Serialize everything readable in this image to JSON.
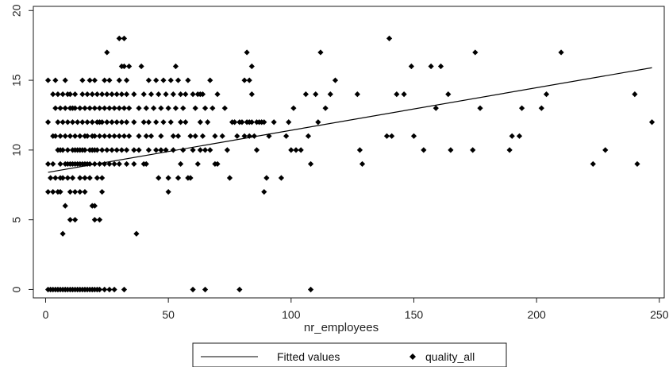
{
  "chart_data": {
    "type": "scatter",
    "xlabel": "nr_employees",
    "ylabel": "",
    "xlim": [
      -5,
      252
    ],
    "ylim": [
      -0.6,
      20.3
    ],
    "xticks": [
      0,
      50,
      100,
      150,
      200,
      250
    ],
    "yticks": [
      0,
      5,
      10,
      15,
      20
    ],
    "grid": false,
    "legend_position": "bottom",
    "series": [
      {
        "name": "Fitted values",
        "type": "line",
        "color": "#000000",
        "x": [
          1,
          247
        ],
        "y": [
          8.4,
          15.9
        ]
      },
      {
        "name": "quality_all",
        "type": "scatter",
        "marker": "diamond",
        "color": "#000000",
        "points": [
          [
            1,
            15
          ],
          [
            1,
            12
          ],
          [
            1,
            9
          ],
          [
            1,
            7
          ],
          [
            1,
            0
          ],
          [
            2,
            8
          ],
          [
            2,
            0
          ],
          [
            3,
            14
          ],
          [
            3,
            11
          ],
          [
            3,
            9
          ],
          [
            3,
            7
          ],
          [
            3,
            0
          ],
          [
            4,
            15
          ],
          [
            4,
            13
          ],
          [
            4,
            11
          ],
          [
            4,
            8
          ],
          [
            4,
            0
          ],
          [
            5,
            14
          ],
          [
            5,
            12
          ],
          [
            5,
            10
          ],
          [
            5,
            7
          ],
          [
            5,
            0
          ],
          [
            6,
            13
          ],
          [
            6,
            11
          ],
          [
            6,
            10
          ],
          [
            6,
            9
          ],
          [
            6,
            8
          ],
          [
            6,
            7
          ],
          [
            6,
            0
          ],
          [
            7,
            14
          ],
          [
            7,
            12
          ],
          [
            7,
            10
          ],
          [
            7,
            8
          ],
          [
            7,
            4
          ],
          [
            7,
            0
          ],
          [
            8,
            15
          ],
          [
            8,
            13
          ],
          [
            8,
            11
          ],
          [
            8,
            9
          ],
          [
            8,
            6
          ],
          [
            8,
            0
          ],
          [
            9,
            14
          ],
          [
            9,
            12
          ],
          [
            9,
            10
          ],
          [
            9,
            9
          ],
          [
            9,
            8
          ],
          [
            9,
            0
          ],
          [
            10,
            14
          ],
          [
            10,
            13
          ],
          [
            10,
            11
          ],
          [
            10,
            9
          ],
          [
            10,
            7
          ],
          [
            10,
            5
          ],
          [
            10,
            0
          ],
          [
            11,
            13
          ],
          [
            11,
            12
          ],
          [
            11,
            10
          ],
          [
            11,
            9
          ],
          [
            11,
            8
          ],
          [
            11,
            0
          ],
          [
            12,
            14
          ],
          [
            12,
            13
          ],
          [
            12,
            11
          ],
          [
            12,
            10
          ],
          [
            12,
            9
          ],
          [
            12,
            7
          ],
          [
            12,
            5
          ],
          [
            12,
            0
          ],
          [
            13,
            12
          ],
          [
            13,
            10
          ],
          [
            13,
            9
          ],
          [
            13,
            0
          ],
          [
            14,
            13
          ],
          [
            14,
            11
          ],
          [
            14,
            10
          ],
          [
            14,
            9
          ],
          [
            14,
            8
          ],
          [
            14,
            7
          ],
          [
            14,
            0
          ],
          [
            15,
            15
          ],
          [
            15,
            14
          ],
          [
            15,
            12
          ],
          [
            15,
            10
          ],
          [
            15,
            9
          ],
          [
            15,
            0
          ],
          [
            16,
            13
          ],
          [
            16,
            11
          ],
          [
            16,
            10
          ],
          [
            16,
            9
          ],
          [
            16,
            8
          ],
          [
            16,
            7
          ],
          [
            16,
            0
          ],
          [
            17,
            14
          ],
          [
            17,
            12
          ],
          [
            17,
            11
          ],
          [
            17,
            9
          ],
          [
            17,
            0
          ],
          [
            18,
            15
          ],
          [
            18,
            13
          ],
          [
            18,
            10
          ],
          [
            18,
            9
          ],
          [
            18,
            8
          ],
          [
            18,
            0
          ],
          [
            19,
            14
          ],
          [
            19,
            12
          ],
          [
            19,
            11
          ],
          [
            19,
            10
          ],
          [
            19,
            6
          ],
          [
            19,
            0
          ],
          [
            20,
            15
          ],
          [
            20,
            13
          ],
          [
            20,
            11
          ],
          [
            20,
            10
          ],
          [
            20,
            9
          ],
          [
            20,
            6
          ],
          [
            20,
            5
          ],
          [
            20,
            0
          ],
          [
            21,
            14
          ],
          [
            21,
            12
          ],
          [
            21,
            10
          ],
          [
            21,
            8
          ],
          [
            21,
            0
          ],
          [
            22,
            13
          ],
          [
            22,
            12
          ],
          [
            22,
            11
          ],
          [
            22,
            9
          ],
          [
            22,
            5
          ],
          [
            22,
            0
          ],
          [
            23,
            14
          ],
          [
            23,
            12
          ],
          [
            23,
            10
          ],
          [
            23,
            8
          ],
          [
            23,
            7
          ],
          [
            24,
            15
          ],
          [
            24,
            13
          ],
          [
            24,
            11
          ],
          [
            24,
            9
          ],
          [
            24,
            0
          ],
          [
            25,
            17
          ],
          [
            25,
            14
          ],
          [
            25,
            12
          ],
          [
            25,
            10
          ],
          [
            26,
            15
          ],
          [
            26,
            13
          ],
          [
            26,
            11
          ],
          [
            26,
            9
          ],
          [
            26,
            0
          ],
          [
            27,
            14
          ],
          [
            27,
            12
          ],
          [
            27,
            10
          ],
          [
            28,
            13
          ],
          [
            28,
            11
          ],
          [
            28,
            9
          ],
          [
            28,
            0
          ],
          [
            29,
            14
          ],
          [
            29,
            12
          ],
          [
            29,
            10
          ],
          [
            30,
            18
          ],
          [
            30,
            15
          ],
          [
            30,
            13
          ],
          [
            30,
            11
          ],
          [
            30,
            9
          ],
          [
            31,
            16
          ],
          [
            31,
            14
          ],
          [
            31,
            12
          ],
          [
            31,
            10
          ],
          [
            32,
            18
          ],
          [
            32,
            16
          ],
          [
            32,
            13
          ],
          [
            32,
            11
          ],
          [
            32,
            0
          ],
          [
            33,
            15
          ],
          [
            33,
            14
          ],
          [
            33,
            12
          ],
          [
            33,
            10
          ],
          [
            33,
            9
          ],
          [
            34,
            16
          ],
          [
            34,
            13
          ],
          [
            34,
            11
          ],
          [
            36,
            14
          ],
          [
            36,
            12
          ],
          [
            36,
            10
          ],
          [
            36,
            9
          ],
          [
            37,
            4
          ],
          [
            38,
            13
          ],
          [
            38,
            11
          ],
          [
            38,
            10
          ],
          [
            39,
            16
          ],
          [
            40,
            14
          ],
          [
            40,
            12
          ],
          [
            40,
            9
          ],
          [
            41,
            13
          ],
          [
            41,
            11
          ],
          [
            41,
            9
          ],
          [
            42,
            15
          ],
          [
            42,
            12
          ],
          [
            42,
            10
          ],
          [
            43,
            14
          ],
          [
            43,
            11
          ],
          [
            44,
            13
          ],
          [
            45,
            15
          ],
          [
            45,
            12
          ],
          [
            45,
            10
          ],
          [
            46,
            14
          ],
          [
            46,
            8
          ],
          [
            47,
            13
          ],
          [
            47,
            11
          ],
          [
            47,
            10
          ],
          [
            48,
            15
          ],
          [
            48,
            12
          ],
          [
            49,
            14
          ],
          [
            49,
            10
          ],
          [
            50,
            13
          ],
          [
            50,
            8
          ],
          [
            50,
            7
          ],
          [
            51,
            15
          ],
          [
            51,
            12
          ],
          [
            52,
            14
          ],
          [
            52,
            11
          ],
          [
            52,
            10
          ],
          [
            53,
            16
          ],
          [
            53,
            13
          ],
          [
            54,
            15
          ],
          [
            54,
            11
          ],
          [
            54,
            8
          ],
          [
            55,
            14
          ],
          [
            55,
            12
          ],
          [
            55,
            9
          ],
          [
            56,
            13
          ],
          [
            56,
            10
          ],
          [
            57,
            14
          ],
          [
            57,
            12
          ],
          [
            58,
            15
          ],
          [
            58,
            8
          ],
          [
            59,
            11
          ],
          [
            59,
            8
          ],
          [
            60,
            14
          ],
          [
            60,
            10
          ],
          [
            60,
            0
          ],
          [
            61,
            13
          ],
          [
            61,
            11
          ],
          [
            62,
            14
          ],
          [
            62,
            9
          ],
          [
            63,
            14
          ],
          [
            63,
            12
          ],
          [
            63,
            10
          ],
          [
            64,
            14
          ],
          [
            64,
            11
          ],
          [
            65,
            13
          ],
          [
            65,
            10
          ],
          [
            65,
            0
          ],
          [
            66,
            12
          ],
          [
            67,
            15
          ],
          [
            67,
            10
          ],
          [
            68,
            13
          ],
          [
            69,
            11
          ],
          [
            69,
            9
          ],
          [
            70,
            14
          ],
          [
            70,
            9
          ],
          [
            72,
            11
          ],
          [
            73,
            13
          ],
          [
            74,
            10
          ],
          [
            75,
            8
          ],
          [
            76,
            12
          ],
          [
            77,
            12
          ],
          [
            78,
            11
          ],
          [
            79,
            12
          ],
          [
            79,
            0
          ],
          [
            80,
            12
          ],
          [
            81,
            15
          ],
          [
            81,
            11
          ],
          [
            82,
            17
          ],
          [
            82,
            12
          ],
          [
            83,
            15
          ],
          [
            83,
            12
          ],
          [
            83,
            11
          ],
          [
            84,
            16
          ],
          [
            84,
            14
          ],
          [
            84,
            12
          ],
          [
            85,
            11
          ],
          [
            86,
            12
          ],
          [
            86,
            10
          ],
          [
            87,
            12
          ],
          [
            88,
            12
          ],
          [
            89,
            12
          ],
          [
            89,
            7
          ],
          [
            90,
            8
          ],
          [
            91,
            11
          ],
          [
            93,
            12
          ],
          [
            96,
            8
          ],
          [
            98,
            11
          ],
          [
            99,
            12
          ],
          [
            100,
            10
          ],
          [
            101,
            13
          ],
          [
            102,
            10
          ],
          [
            104,
            10
          ],
          [
            106,
            14
          ],
          [
            107,
            11
          ],
          [
            108,
            9
          ],
          [
            108,
            0
          ],
          [
            110,
            14
          ],
          [
            111,
            12
          ],
          [
            112,
            17
          ],
          [
            114,
            13
          ],
          [
            116,
            14
          ],
          [
            118,
            15
          ],
          [
            127,
            14
          ],
          [
            128,
            10
          ],
          [
            129,
            9
          ],
          [
            139,
            11
          ],
          [
            140,
            18
          ],
          [
            141,
            11
          ],
          [
            143,
            14
          ],
          [
            146,
            14
          ],
          [
            149,
            16
          ],
          [
            150,
            11
          ],
          [
            154,
            10
          ],
          [
            157,
            16
          ],
          [
            159,
            13
          ],
          [
            161,
            16
          ],
          [
            164,
            14
          ],
          [
            165,
            10
          ],
          [
            174,
            10
          ],
          [
            175,
            17
          ],
          [
            177,
            13
          ],
          [
            189,
            10
          ],
          [
            190,
            11
          ],
          [
            193,
            11
          ],
          [
            194,
            13
          ],
          [
            202,
            13
          ],
          [
            204,
            14
          ],
          [
            210,
            17
          ],
          [
            223,
            9
          ],
          [
            228,
            10
          ],
          [
            240,
            14
          ],
          [
            241,
            9
          ],
          [
            247,
            12
          ]
        ]
      }
    ]
  }
}
